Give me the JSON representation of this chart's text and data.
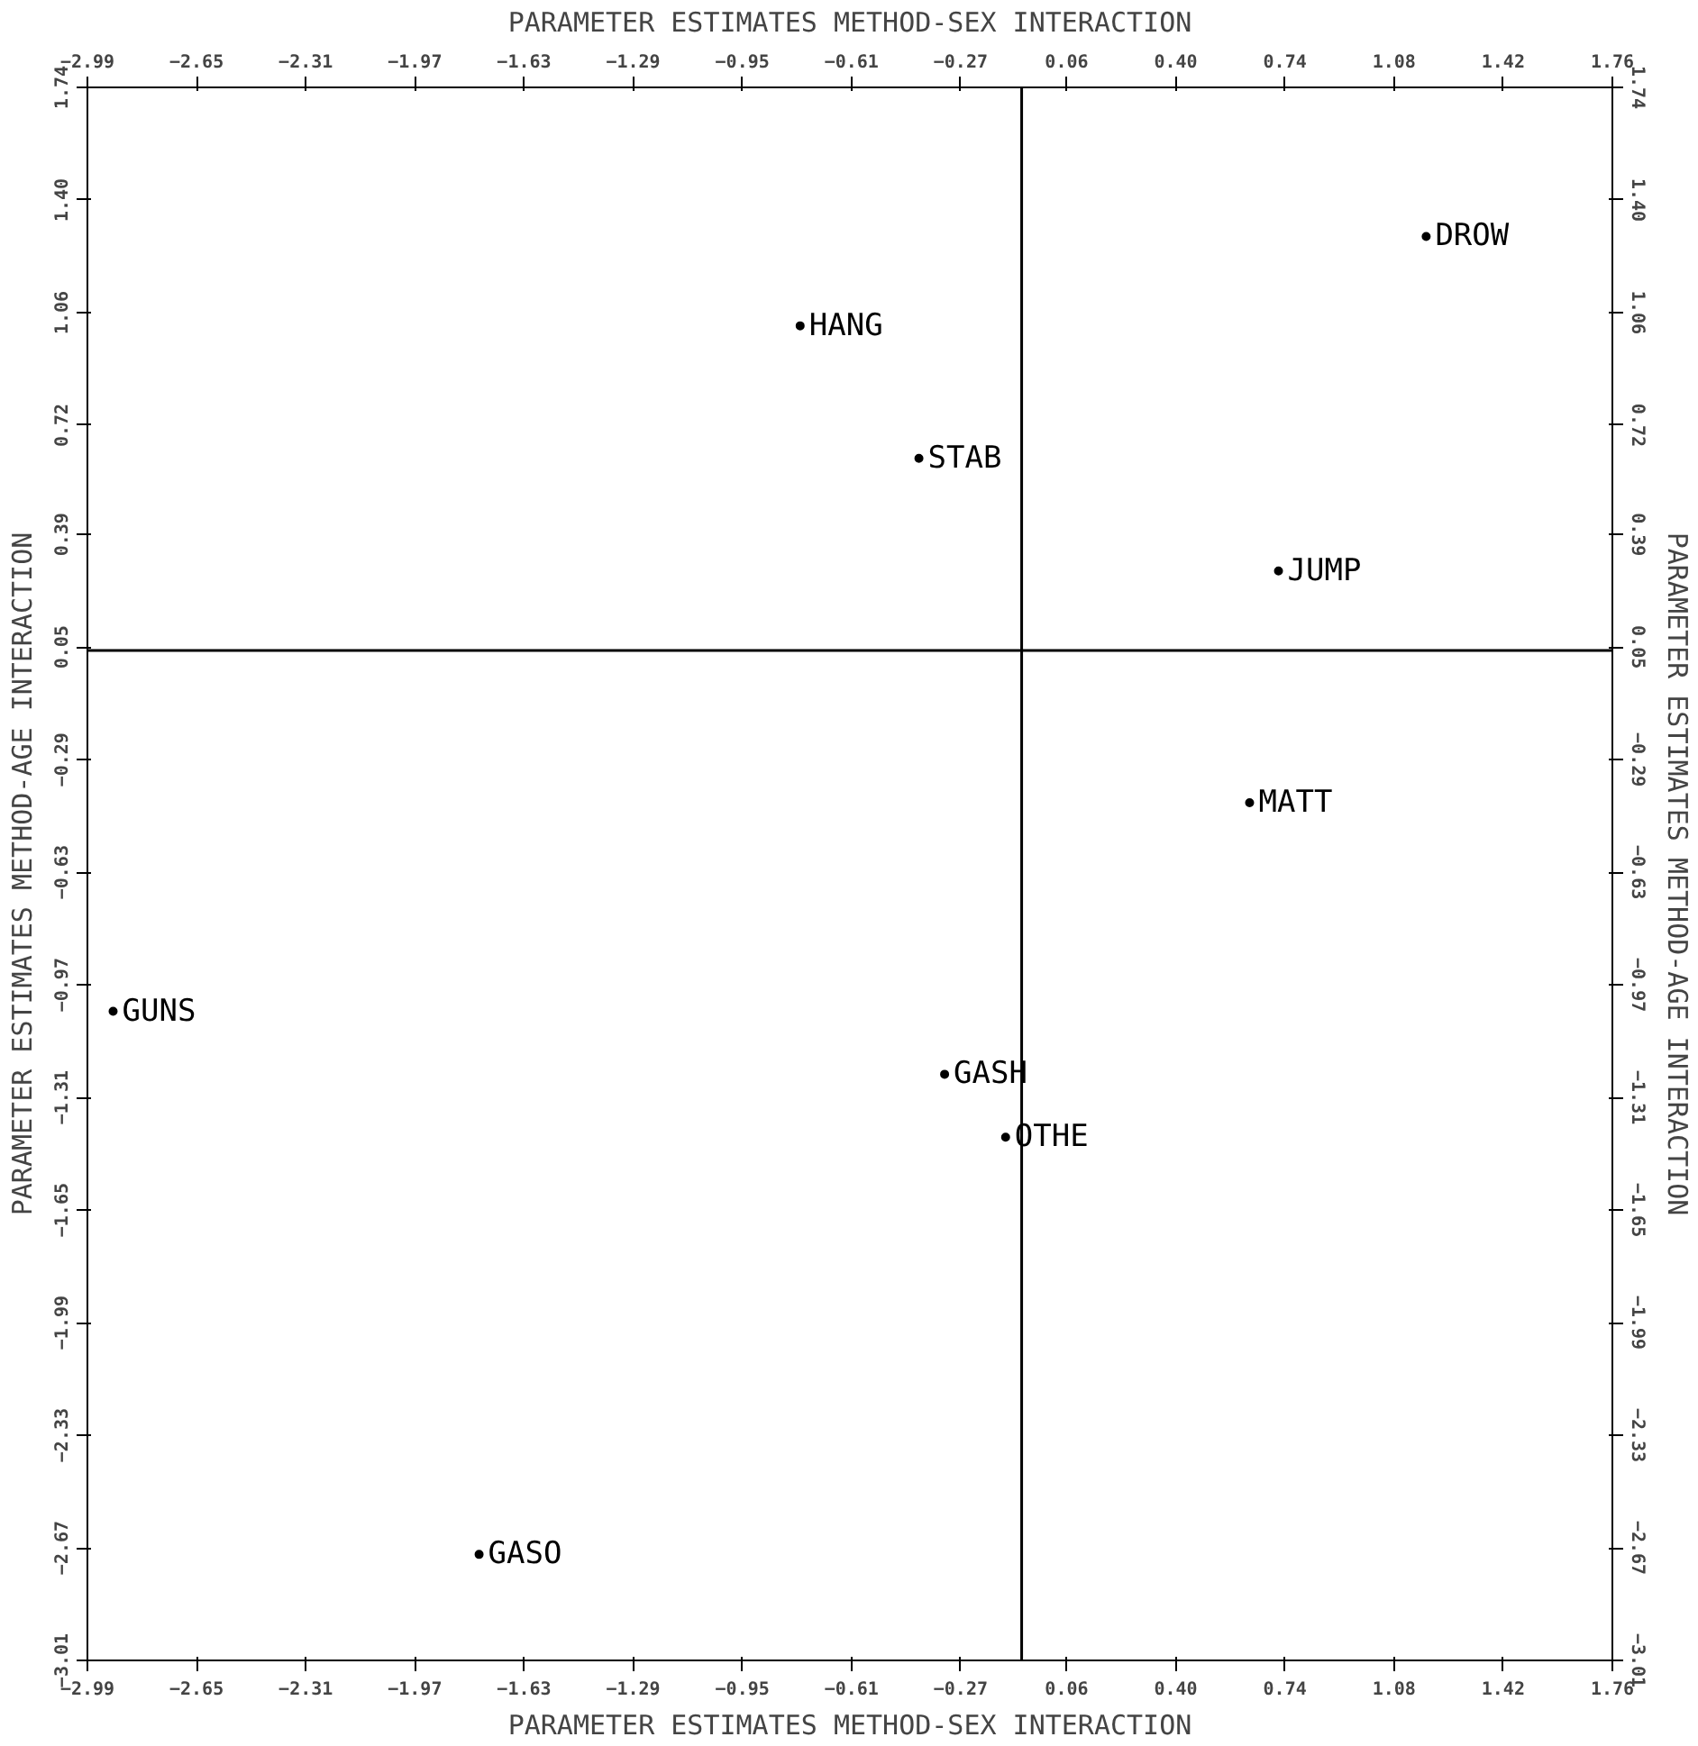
{
  "chart_data": {
    "type": "scatter",
    "marker": "circle",
    "grid": false,
    "xlabel": "PARAMETER ESTIMATES METHOD-SEX INTERACTION",
    "x2label": "PARAMETER ESTIMATES METHOD-SEX INTERACTION",
    "ylabel": "PARAMETER ESTIMATES METHOD-AGE INTERACTION",
    "y2label": "PARAMETER ESTIMATES METHOD-AGE INTERACTION",
    "xlim": [
      -2.99,
      1.76
    ],
    "x2lim": [
      -2.99,
      1.76
    ],
    "ylim": [
      -3.01,
      1.74
    ],
    "y2lim": [
      -3.01,
      1.74
    ],
    "xticks": [
      -2.99,
      -2.65,
      -2.31,
      -1.97,
      -1.63,
      -1.29,
      -0.95,
      -0.61,
      -0.27,
      0.06,
      {
        "value": 0.4,
        "label": "0.40"
      },
      0.74,
      1.08,
      1.42,
      1.76
    ],
    "x2ticks": [
      -2.99,
      -2.65,
      -2.31,
      -1.97,
      -1.63,
      -1.29,
      -0.95,
      -0.61,
      -0.27,
      0.06,
      {
        "value": 0.4,
        "label": "0.40"
      },
      0.74,
      1.08,
      1.42,
      1.76
    ],
    "yticks": [
      -3.01,
      -2.67,
      -2.33,
      -1.99,
      -1.65,
      -1.31,
      -0.97,
      -0.63,
      -0.29,
      0.05,
      0.39,
      0.72,
      1.06,
      {
        "value": 1.4,
        "label": "1.40"
      },
      1.74
    ],
    "y2ticks": [
      -3.01,
      -2.67,
      -2.33,
      -1.99,
      -1.65,
      -1.31,
      -0.97,
      -0.63,
      -0.29,
      0.05,
      0.39,
      0.72,
      1.06,
      {
        "value": 1.4,
        "label": "1.40"
      },
      1.74
    ],
    "ref_lines": [
      {
        "axis": "x",
        "value": -0.08,
        "color": "#000000"
      },
      {
        "axis": "y",
        "value": 0.04,
        "color": "#000000"
      }
    ],
    "series": [
      {
        "color": "#000000",
        "x": [
          1.18,
          -0.77,
          -0.4,
          0.72,
          0.63,
          -2.91,
          -0.32,
          -0.13,
          -1.77
        ],
        "values": [
          1.29,
          1.02,
          0.62,
          0.28,
          -0.42,
          -1.05,
          -1.24,
          -1.43,
          -2.69
        ],
        "value_labels": [
          "DROW",
          "HANG",
          "STAB",
          "JUMP",
          "MATT",
          "GUNS",
          "GASH",
          "OTHE",
          "GASO"
        ]
      }
    ]
  }
}
